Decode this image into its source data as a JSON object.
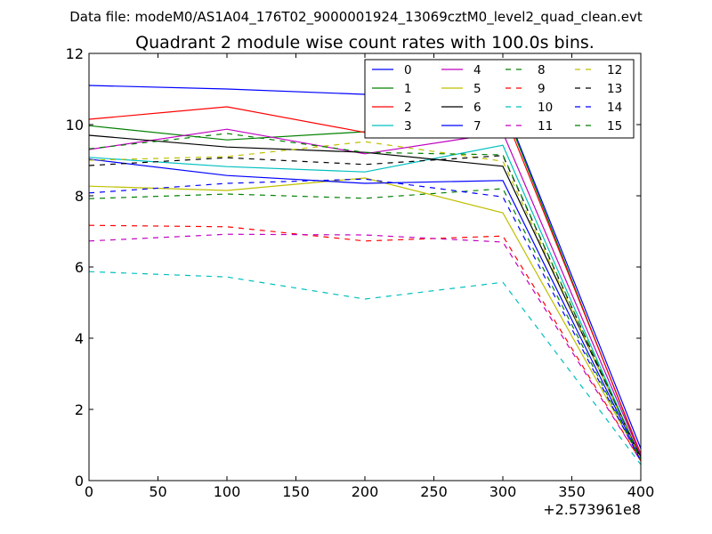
{
  "suptitle": "Data file: modeM0/AS1A04_176T02_9000001924_13069cztM0_level2_quad_clean.evt",
  "chart_data": {
    "type": "line",
    "title": "Quadrant 2 module wise count rates with 100.0s bins.",
    "xlabel": "",
    "ylabel": "",
    "x": [
      0,
      100,
      200,
      300,
      400
    ],
    "x_offset_label": "+2.573961e8",
    "xlim": [
      0,
      400
    ],
    "ylim": [
      0,
      12
    ],
    "xticks": [
      "0",
      "50",
      "100",
      "150",
      "200",
      "250",
      "300",
      "350",
      "400"
    ],
    "yticks": [
      "0",
      "2",
      "4",
      "6",
      "8",
      "10",
      "12"
    ],
    "grid": false,
    "legend_position": "top-right",
    "series": [
      {
        "name": "0",
        "color": "#0000ff",
        "dash": "solid",
        "values": [
          11.1,
          11.0,
          10.85,
          10.6,
          0.9
        ]
      },
      {
        "name": "1",
        "color": "#008000",
        "dash": "solid",
        "values": [
          9.97,
          9.57,
          9.8,
          10.55,
          0.7
        ]
      },
      {
        "name": "2",
        "color": "#ff0000",
        "dash": "solid",
        "values": [
          10.15,
          10.5,
          9.78,
          10.4,
          0.75
        ]
      },
      {
        "name": "3",
        "color": "#00bfbf",
        "dash": "solid",
        "values": [
          9.08,
          8.82,
          8.67,
          9.42,
          0.6
        ]
      },
      {
        "name": "4",
        "color": "#bf00bf",
        "dash": "solid",
        "values": [
          9.3,
          9.87,
          9.18,
          9.77,
          0.7
        ]
      },
      {
        "name": "5",
        "color": "#bfbf00",
        "dash": "solid",
        "values": [
          8.27,
          8.15,
          8.5,
          7.52,
          0.6
        ]
      },
      {
        "name": "6",
        "color": "#000000",
        "dash": "solid",
        "values": [
          9.7,
          9.37,
          9.22,
          8.83,
          0.65
        ]
      },
      {
        "name": "7",
        "color": "#0000ff",
        "dash": "solid",
        "values": [
          9.03,
          8.57,
          8.35,
          8.43,
          0.6
        ]
      },
      {
        "name": "8",
        "color": "#008000",
        "dash": "dashed",
        "values": [
          7.92,
          8.05,
          7.93,
          8.2,
          0.55
        ]
      },
      {
        "name": "9",
        "color": "#ff0000",
        "dash": "dashed",
        "values": [
          7.17,
          7.13,
          6.73,
          6.87,
          0.55
        ]
      },
      {
        "name": "10",
        "color": "#00bfbf",
        "dash": "dashed",
        "values": [
          5.87,
          5.72,
          5.1,
          5.57,
          0.45
        ]
      },
      {
        "name": "11",
        "color": "#bf00bf",
        "dash": "dashed",
        "values": [
          6.73,
          6.92,
          6.9,
          6.7,
          0.55
        ]
      },
      {
        "name": "12",
        "color": "#bfbf00",
        "dash": "dashed",
        "values": [
          9.0,
          9.1,
          9.52,
          8.97,
          0.6
        ]
      },
      {
        "name": "13",
        "color": "#000000",
        "dash": "dashed",
        "values": [
          8.85,
          9.07,
          8.88,
          9.13,
          0.6
        ]
      },
      {
        "name": "14",
        "color": "#0000ff",
        "dash": "dashed",
        "values": [
          8.08,
          8.35,
          8.47,
          7.97,
          0.55
        ]
      },
      {
        "name": "15",
        "color": "#008000",
        "dash": "dashed",
        "values": [
          9.32,
          9.75,
          9.22,
          9.15,
          0.6
        ]
      }
    ]
  }
}
